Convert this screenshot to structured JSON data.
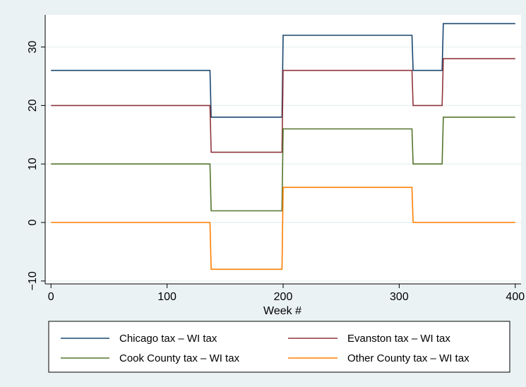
{
  "chart_data": {
    "type": "line",
    "xlabel": "Week #",
    "ylabel": "",
    "xlim": [
      -5,
      405
    ],
    "ylim": [
      -10.5,
      35.5
    ],
    "xticks": [
      0,
      100,
      200,
      300,
      400
    ],
    "yticks": [
      -10,
      0,
      10,
      20,
      30
    ],
    "grid": "horizontal",
    "legend_position": "bottom",
    "series": [
      {
        "name": "Chicago tax – WI tax",
        "color": "#1a476f",
        "points": [
          [
            0,
            26
          ],
          [
            137,
            26
          ],
          [
            138,
            18
          ],
          [
            199,
            18
          ],
          [
            200,
            32
          ],
          [
            311,
            32
          ],
          [
            312,
            26
          ],
          [
            337,
            26
          ],
          [
            338,
            34
          ],
          [
            400,
            34
          ]
        ]
      },
      {
        "name": "Evanston tax – WI tax",
        "color": "#90353b",
        "points": [
          [
            0,
            20
          ],
          [
            137,
            20
          ],
          [
            138,
            12
          ],
          [
            199,
            12
          ],
          [
            200,
            26
          ],
          [
            311,
            26
          ],
          [
            312,
            20
          ],
          [
            337,
            20
          ],
          [
            338,
            28
          ],
          [
            400,
            28
          ]
        ]
      },
      {
        "name": "Cook County tax – WI tax",
        "color": "#55752f",
        "points": [
          [
            0,
            10
          ],
          [
            137,
            10
          ],
          [
            138,
            2
          ],
          [
            199,
            2
          ],
          [
            200,
            16
          ],
          [
            311,
            16
          ],
          [
            312,
            10
          ],
          [
            337,
            10
          ],
          [
            338,
            18
          ],
          [
            400,
            18
          ]
        ]
      },
      {
        "name": "Other County tax – WI tax",
        "color": "#ff7f00",
        "points": [
          [
            0,
            0
          ],
          [
            137,
            0
          ],
          [
            138,
            -8
          ],
          [
            199,
            -8
          ],
          [
            200,
            6
          ],
          [
            311,
            6
          ],
          [
            312,
            0
          ],
          [
            400,
            0
          ]
        ]
      }
    ]
  }
}
